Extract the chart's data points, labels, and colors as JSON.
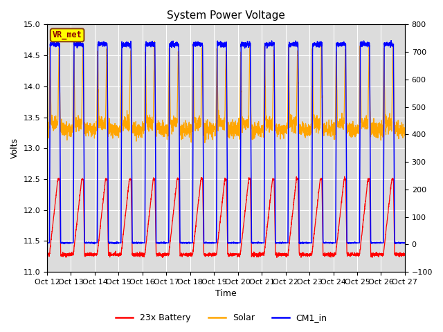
{
  "title": "System Power Voltage",
  "xlabel": "Time",
  "ylabel_left": "Volts",
  "ylim_left": [
    11.0,
    15.0
  ],
  "ylim_right": [
    -100,
    800
  ],
  "yticks_left": [
    11.0,
    11.5,
    12.0,
    12.5,
    13.0,
    13.5,
    14.0,
    14.5,
    15.0
  ],
  "yticks_right": [
    -100,
    0,
    100,
    200,
    300,
    400,
    500,
    600,
    700,
    800
  ],
  "x_tick_labels": [
    "Oct 12",
    "Oct 13",
    "Oct 14",
    "Oct 15",
    "Oct 16",
    "Oct 17",
    "Oct 18",
    "Oct 19",
    "Oct 20",
    "Oct 21",
    "Oct 22",
    "Oct 23",
    "Oct 24",
    "Oct 25",
    "Oct 26",
    "Oct 27"
  ],
  "color_battery": "#FF0000",
  "color_solar": "#FFA500",
  "color_cm1": "#0000FF",
  "legend_labels": [
    "23x Battery",
    "Solar",
    "CM1_in"
  ],
  "annotation_text": "VR_met",
  "annotation_box_color": "#FFFF00",
  "annotation_box_edge": "#8B4513",
  "background_color": "#DCDCDC",
  "n_days": 15,
  "battery_min": 11.28,
  "battery_max": 12.5,
  "cm1_low": 11.47,
  "cm1_high": 14.68,
  "solar_low_base": 13.3,
  "solar_high": 14.65,
  "pts_per_day": 200
}
